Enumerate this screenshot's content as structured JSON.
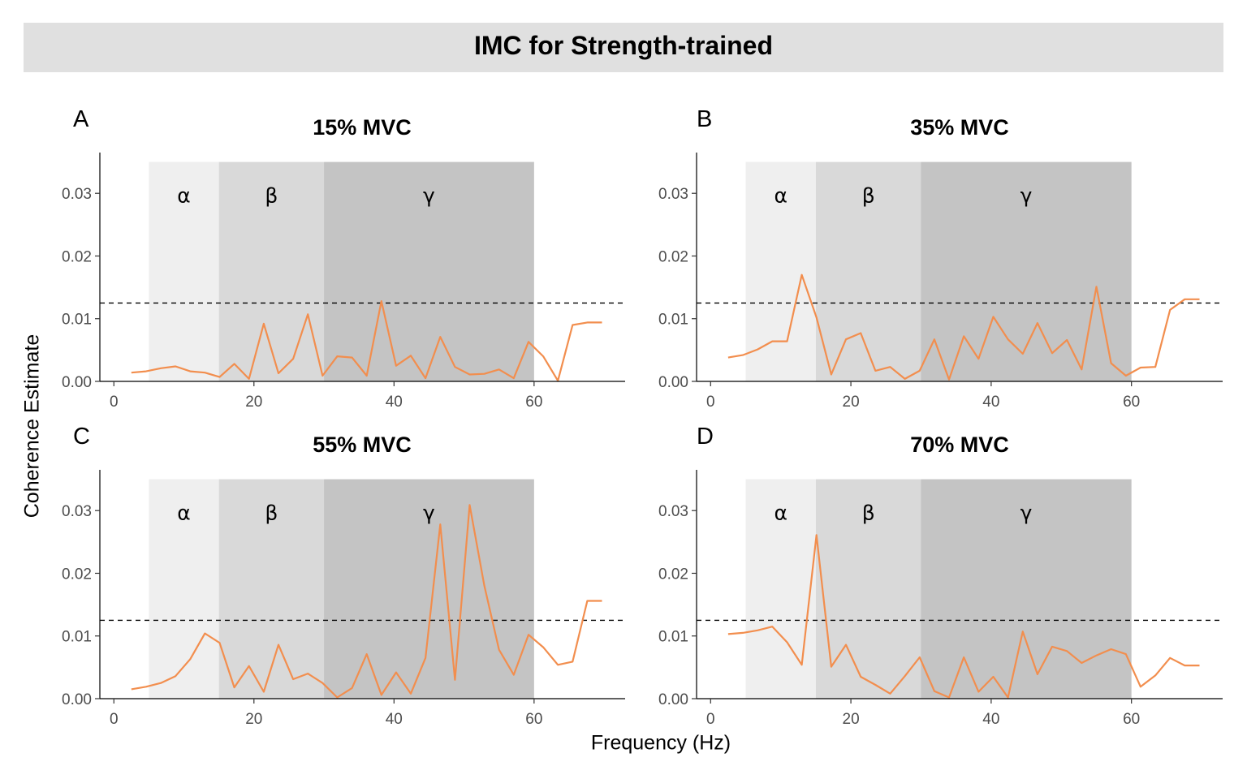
{
  "figure": {
    "title": "IMC for Strength-trained",
    "xlabel": "Frequency (Hz)",
    "ylabel": "Coherence Estimate"
  },
  "colors": {
    "line": "#f28e4e",
    "alpha_band": "#efefef",
    "beta_band": "#d9d9d9",
    "gamma_band": "#c4c4c4",
    "banner": "#e0e0e0"
  },
  "chart_data": [
    {
      "type": "line",
      "panel_label": "A",
      "title": "15% MVC",
      "xlim": [
        -2,
        73
      ],
      "ylim": [
        0,
        0.0365
      ],
      "x_ticks": [
        0,
        20,
        40,
        60
      ],
      "y_ticks": [
        0.0,
        0.01,
        0.02,
        0.03
      ],
      "y_tick_labels": [
        "0.00",
        "0.01",
        "0.02",
        "0.03"
      ],
      "threshold": 0.0125,
      "bands": [
        {
          "label": "α",
          "from": 5,
          "to": 15
        },
        {
          "label": "β",
          "from": 15,
          "to": 30
        },
        {
          "label": "γ",
          "from": 30,
          "to": 60
        }
      ],
      "band_top": 0.035,
      "x": [
        2.5,
        4.6,
        6.7,
        8.8,
        10.9,
        13.0,
        15.1,
        17.2,
        19.3,
        21.4,
        23.5,
        25.6,
        27.7,
        29.8,
        31.9,
        34.0,
        36.1,
        38.2,
        40.3,
        42.4,
        44.5,
        46.6,
        48.7,
        50.8,
        52.9,
        55.0,
        57.1,
        59.2,
        61.3,
        63.4,
        65.5,
        67.6,
        69.7
      ],
      "y": [
        0.0014,
        0.0016,
        0.0021,
        0.0024,
        0.0016,
        0.0014,
        0.0007,
        0.0028,
        0.0004,
        0.0092,
        0.0013,
        0.0036,
        0.0107,
        0.0009,
        0.004,
        0.0038,
        0.0009,
        0.0128,
        0.0025,
        0.0041,
        0.0005,
        0.0071,
        0.0023,
        0.0011,
        0.0012,
        0.0019,
        0.0005,
        0.0063,
        0.004,
        0.0001,
        0.009,
        0.0094,
        0.0094
      ]
    },
    {
      "type": "line",
      "panel_label": "B",
      "title": "35% MVC",
      "xlim": [
        -2,
        73
      ],
      "ylim": [
        0,
        0.0365
      ],
      "x_ticks": [
        0,
        20,
        40,
        60
      ],
      "y_ticks": [
        0.0,
        0.01,
        0.02,
        0.03
      ],
      "y_tick_labels": [
        "0.00",
        "0.01",
        "0.02",
        "0.03"
      ],
      "threshold": 0.0125,
      "bands": [
        {
          "label": "α",
          "from": 5,
          "to": 15
        },
        {
          "label": "β",
          "from": 15,
          "to": 30
        },
        {
          "label": "γ",
          "from": 30,
          "to": 60
        }
      ],
      "band_top": 0.035,
      "x": [
        2.5,
        4.6,
        6.7,
        8.8,
        10.9,
        13.0,
        15.1,
        17.2,
        19.3,
        21.4,
        23.5,
        25.6,
        27.7,
        29.8,
        31.9,
        34.0,
        36.1,
        38.2,
        40.3,
        42.4,
        44.5,
        46.6,
        48.7,
        50.8,
        52.9,
        55.0,
        57.1,
        59.2,
        61.3,
        63.4,
        65.5,
        67.6,
        69.7
      ],
      "y": [
        0.0038,
        0.0042,
        0.0051,
        0.0064,
        0.0064,
        0.017,
        0.0102,
        0.0011,
        0.0067,
        0.0077,
        0.0017,
        0.0023,
        0.0004,
        0.0017,
        0.0067,
        0.0003,
        0.0072,
        0.0036,
        0.0103,
        0.0067,
        0.0044,
        0.0093,
        0.0045,
        0.0066,
        0.0019,
        0.0151,
        0.0029,
        0.0009,
        0.0022,
        0.0023,
        0.0114,
        0.0131,
        0.0131
      ]
    },
    {
      "type": "line",
      "panel_label": "C",
      "title": "55% MVC",
      "xlim": [
        -2,
        73
      ],
      "ylim": [
        0,
        0.0365
      ],
      "x_ticks": [
        0,
        20,
        40,
        60
      ],
      "y_ticks": [
        0.0,
        0.01,
        0.02,
        0.03
      ],
      "y_tick_labels": [
        "0.00",
        "0.01",
        "0.02",
        "0.03"
      ],
      "threshold": 0.0125,
      "bands": [
        {
          "label": "α",
          "from": 5,
          "to": 15
        },
        {
          "label": "β",
          "from": 15,
          "to": 30
        },
        {
          "label": "γ",
          "from": 30,
          "to": 60
        }
      ],
      "band_top": 0.035,
      "x": [
        2.5,
        4.6,
        6.7,
        8.8,
        10.9,
        13.0,
        15.1,
        17.2,
        19.3,
        21.4,
        23.5,
        25.6,
        27.7,
        29.8,
        31.9,
        34.0,
        36.1,
        38.2,
        40.3,
        42.4,
        44.5,
        46.6,
        48.7,
        50.8,
        52.9,
        55.0,
        57.1,
        59.2,
        61.3,
        63.4,
        65.5,
        67.6,
        69.7
      ],
      "y": [
        0.0015,
        0.0019,
        0.0025,
        0.0036,
        0.0063,
        0.0104,
        0.0089,
        0.0018,
        0.0052,
        0.0011,
        0.0086,
        0.0031,
        0.004,
        0.0025,
        0.0002,
        0.0017,
        0.0071,
        0.0006,
        0.0042,
        0.0008,
        0.0065,
        0.0278,
        0.003,
        0.0309,
        0.018,
        0.0078,
        0.0038,
        0.0102,
        0.0082,
        0.0054,
        0.0059,
        0.0156,
        0.0156
      ]
    },
    {
      "type": "line",
      "panel_label": "D",
      "title": "70% MVC",
      "xlim": [
        -2,
        73
      ],
      "ylim": [
        0,
        0.0365
      ],
      "x_ticks": [
        0,
        20,
        40,
        60
      ],
      "y_ticks": [
        0.0,
        0.01,
        0.02,
        0.03
      ],
      "y_tick_labels": [
        "0.00",
        "0.01",
        "0.02",
        "0.03"
      ],
      "threshold": 0.0125,
      "bands": [
        {
          "label": "α",
          "from": 5,
          "to": 15
        },
        {
          "label": "β",
          "from": 15,
          "to": 30
        },
        {
          "label": "γ",
          "from": 30,
          "to": 60
        }
      ],
      "band_top": 0.035,
      "x": [
        2.5,
        4.6,
        6.7,
        8.8,
        10.9,
        13.0,
        15.1,
        17.2,
        19.3,
        21.4,
        23.5,
        25.6,
        27.7,
        29.8,
        31.9,
        34.0,
        36.1,
        38.2,
        40.3,
        42.4,
        44.5,
        46.6,
        48.7,
        50.8,
        52.9,
        55.0,
        57.1,
        59.2,
        61.3,
        63.4,
        65.5,
        67.6,
        69.7
      ],
      "y": [
        0.0103,
        0.0105,
        0.0109,
        0.0115,
        0.009,
        0.0054,
        0.0261,
        0.0051,
        0.0086,
        0.0035,
        0.0022,
        0.0008,
        0.0036,
        0.0066,
        0.0012,
        0.0002,
        0.0066,
        0.0011,
        0.0035,
        0.0002,
        0.0107,
        0.0039,
        0.0083,
        0.0076,
        0.0057,
        0.0069,
        0.0079,
        0.0071,
        0.0019,
        0.0037,
        0.0065,
        0.0053,
        0.0053
      ]
    }
  ]
}
